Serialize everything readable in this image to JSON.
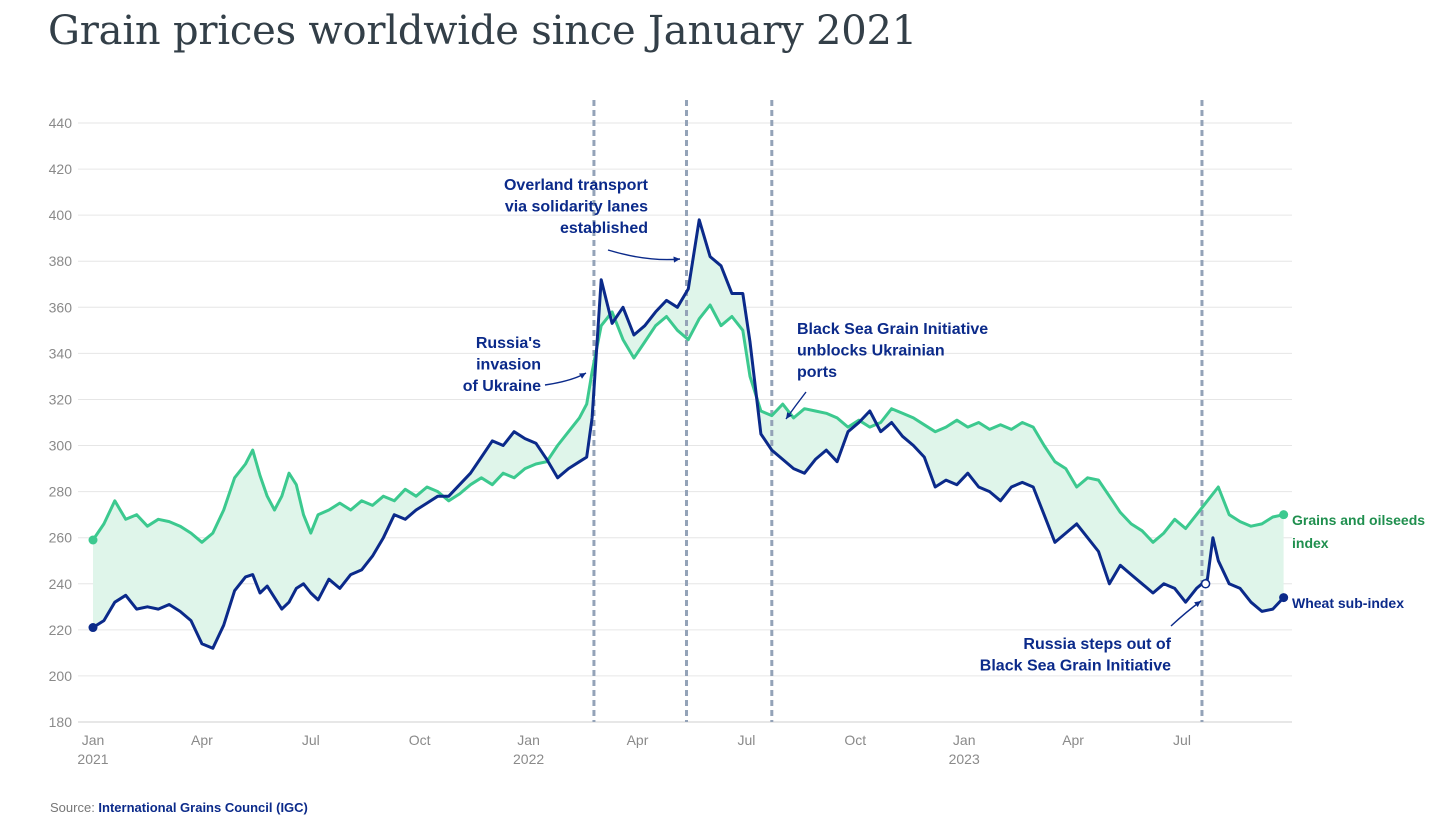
{
  "title": "Grain prices worldwide since January 2021",
  "source": {
    "prefix": "Source: ",
    "name": "International Grains Council (IGC)"
  },
  "colors": {
    "grains": "#3cc98f",
    "wheat": "#0b2a8a",
    "band": "#dff5ea",
    "grid": "#e6e6e6",
    "event": "#94a3b8"
  },
  "chart_data": {
    "type": "line",
    "title": "Grain prices worldwide since January 2021",
    "xlabel": "",
    "ylabel": "",
    "ylim": [
      180,
      440
    ],
    "xlim": [
      0,
      32
    ],
    "y_ticks": [
      180,
      200,
      220,
      240,
      260,
      280,
      300,
      320,
      340,
      360,
      380,
      400,
      420,
      440
    ],
    "x_ticks": [
      {
        "x": 0,
        "month": "Jan",
        "year": "2021"
      },
      {
        "x": 3,
        "month": "Apr",
        "year": ""
      },
      {
        "x": 6,
        "month": "Jul",
        "year": ""
      },
      {
        "x": 9,
        "month": "Oct",
        "year": ""
      },
      {
        "x": 12,
        "month": "Jan",
        "year": "2022"
      },
      {
        "x": 15,
        "month": "Apr",
        "year": ""
      },
      {
        "x": 18,
        "month": "Jul",
        "year": ""
      },
      {
        "x": 21,
        "month": "Oct",
        "year": ""
      },
      {
        "x": 24,
        "month": "Jan",
        "year": "2023"
      },
      {
        "x": 27,
        "month": "Apr",
        "year": ""
      },
      {
        "x": 30,
        "month": "Jul",
        "year": ""
      }
    ],
    "x_unit": "months since January 2021",
    "series": [
      {
        "name": "Grains and oilseeds index",
        "label_lines": [
          "Grains and oilseeds",
          "index"
        ],
        "points": [
          [
            0,
            259
          ],
          [
            0.3,
            266
          ],
          [
            0.6,
            276
          ],
          [
            0.9,
            268
          ],
          [
            1.2,
            270
          ],
          [
            1.5,
            265
          ],
          [
            1.8,
            268
          ],
          [
            2.1,
            267
          ],
          [
            2.4,
            265
          ],
          [
            2.7,
            262
          ],
          [
            3.0,
            258
          ],
          [
            3.3,
            262
          ],
          [
            3.6,
            272
          ],
          [
            3.9,
            286
          ],
          [
            4.2,
            292
          ],
          [
            4.4,
            298
          ],
          [
            4.6,
            287
          ],
          [
            4.8,
            278
          ],
          [
            5.0,
            272
          ],
          [
            5.2,
            278
          ],
          [
            5.4,
            288
          ],
          [
            5.6,
            283
          ],
          [
            5.8,
            270
          ],
          [
            6.0,
            262
          ],
          [
            6.2,
            270
          ],
          [
            6.5,
            272
          ],
          [
            6.8,
            275
          ],
          [
            7.1,
            272
          ],
          [
            7.4,
            276
          ],
          [
            7.7,
            274
          ],
          [
            8.0,
            278
          ],
          [
            8.3,
            276
          ],
          [
            8.6,
            281
          ],
          [
            8.9,
            278
          ],
          [
            9.2,
            282
          ],
          [
            9.5,
            280
          ],
          [
            9.8,
            276
          ],
          [
            10.1,
            279
          ],
          [
            10.4,
            283
          ],
          [
            10.7,
            286
          ],
          [
            11.0,
            283
          ],
          [
            11.3,
            288
          ],
          [
            11.6,
            286
          ],
          [
            11.9,
            290
          ],
          [
            12.2,
            292
          ],
          [
            12.5,
            293
          ],
          [
            12.8,
            300
          ],
          [
            13.1,
            306
          ],
          [
            13.4,
            312
          ],
          [
            13.6,
            318
          ],
          [
            13.75,
            332
          ],
          [
            14.0,
            352
          ],
          [
            14.3,
            358
          ],
          [
            14.6,
            346
          ],
          [
            14.9,
            338
          ],
          [
            15.2,
            345
          ],
          [
            15.5,
            352
          ],
          [
            15.8,
            356
          ],
          [
            16.1,
            350
          ],
          [
            16.4,
            346
          ],
          [
            16.7,
            355
          ],
          [
            17.0,
            361
          ],
          [
            17.3,
            352
          ],
          [
            17.6,
            356
          ],
          [
            17.9,
            350
          ],
          [
            18.1,
            330
          ],
          [
            18.4,
            315
          ],
          [
            18.7,
            313
          ],
          [
            19.0,
            318
          ],
          [
            19.3,
            312
          ],
          [
            19.6,
            316
          ],
          [
            19.9,
            315
          ],
          [
            20.2,
            314
          ],
          [
            20.5,
            312
          ],
          [
            20.8,
            308
          ],
          [
            21.1,
            311
          ],
          [
            21.4,
            308
          ],
          [
            21.7,
            310
          ],
          [
            22.0,
            316
          ],
          [
            22.3,
            314
          ],
          [
            22.6,
            312
          ],
          [
            22.9,
            309
          ],
          [
            23.2,
            306
          ],
          [
            23.5,
            308
          ],
          [
            23.8,
            311
          ],
          [
            24.1,
            308
          ],
          [
            24.4,
            310
          ],
          [
            24.7,
            307
          ],
          [
            25.0,
            309
          ],
          [
            25.3,
            307
          ],
          [
            25.6,
            310
          ],
          [
            25.9,
            308
          ],
          [
            26.2,
            300
          ],
          [
            26.5,
            293
          ],
          [
            26.8,
            290
          ],
          [
            27.1,
            282
          ],
          [
            27.4,
            286
          ],
          [
            27.7,
            285
          ],
          [
            28.0,
            278
          ],
          [
            28.3,
            271
          ],
          [
            28.6,
            266
          ],
          [
            28.9,
            263
          ],
          [
            29.2,
            258
          ],
          [
            29.5,
            262
          ],
          [
            29.8,
            268
          ],
          [
            30.1,
            264
          ],
          [
            30.4,
            270
          ],
          [
            30.7,
            276
          ],
          [
            31.0,
            282
          ],
          [
            31.3,
            270
          ],
          [
            31.6,
            267
          ],
          [
            31.9,
            265
          ],
          [
            32.2,
            266
          ],
          [
            32.5,
            269
          ],
          [
            32.8,
            270
          ]
        ]
      },
      {
        "name": "Wheat sub-index",
        "label_lines": [
          "Wheat sub-index"
        ],
        "points": [
          [
            0,
            221
          ],
          [
            0.3,
            224
          ],
          [
            0.6,
            232
          ],
          [
            0.9,
            235
          ],
          [
            1.2,
            229
          ],
          [
            1.5,
            230
          ],
          [
            1.8,
            229
          ],
          [
            2.1,
            231
          ],
          [
            2.4,
            228
          ],
          [
            2.7,
            224
          ],
          [
            3.0,
            214
          ],
          [
            3.3,
            212
          ],
          [
            3.6,
            222
          ],
          [
            3.9,
            237
          ],
          [
            4.2,
            243
          ],
          [
            4.4,
            244
          ],
          [
            4.6,
            236
          ],
          [
            4.8,
            239
          ],
          [
            5.0,
            234
          ],
          [
            5.2,
            229
          ],
          [
            5.4,
            232
          ],
          [
            5.6,
            238
          ],
          [
            5.8,
            240
          ],
          [
            6.0,
            236
          ],
          [
            6.2,
            233
          ],
          [
            6.5,
            242
          ],
          [
            6.8,
            238
          ],
          [
            7.1,
            244
          ],
          [
            7.4,
            246
          ],
          [
            7.7,
            252
          ],
          [
            8.0,
            260
          ],
          [
            8.3,
            270
          ],
          [
            8.6,
            268
          ],
          [
            8.9,
            272
          ],
          [
            9.2,
            275
          ],
          [
            9.5,
            278
          ],
          [
            9.8,
            278
          ],
          [
            10.1,
            283
          ],
          [
            10.4,
            288
          ],
          [
            10.7,
            295
          ],
          [
            11.0,
            302
          ],
          [
            11.3,
            300
          ],
          [
            11.6,
            306
          ],
          [
            11.9,
            303
          ],
          [
            12.2,
            301
          ],
          [
            12.5,
            294
          ],
          [
            12.8,
            286
          ],
          [
            13.1,
            290
          ],
          [
            13.4,
            293
          ],
          [
            13.6,
            295
          ],
          [
            13.75,
            312
          ],
          [
            14.0,
            372
          ],
          [
            14.3,
            353
          ],
          [
            14.6,
            360
          ],
          [
            14.9,
            348
          ],
          [
            15.2,
            352
          ],
          [
            15.5,
            358
          ],
          [
            15.8,
            363
          ],
          [
            16.1,
            360
          ],
          [
            16.4,
            368
          ],
          [
            16.7,
            398
          ],
          [
            17.0,
            382
          ],
          [
            17.3,
            378
          ],
          [
            17.6,
            366
          ],
          [
            17.9,
            366
          ],
          [
            18.1,
            345
          ],
          [
            18.4,
            305
          ],
          [
            18.7,
            298
          ],
          [
            19.0,
            294
          ],
          [
            19.3,
            290
          ],
          [
            19.6,
            288
          ],
          [
            19.9,
            294
          ],
          [
            20.2,
            298
          ],
          [
            20.5,
            293
          ],
          [
            20.8,
            306
          ],
          [
            21.1,
            310
          ],
          [
            21.4,
            315
          ],
          [
            21.7,
            306
          ],
          [
            22.0,
            310
          ],
          [
            22.3,
            304
          ],
          [
            22.6,
            300
          ],
          [
            22.9,
            295
          ],
          [
            23.2,
            282
          ],
          [
            23.5,
            285
          ],
          [
            23.8,
            283
          ],
          [
            24.1,
            288
          ],
          [
            24.4,
            282
          ],
          [
            24.7,
            280
          ],
          [
            25.0,
            276
          ],
          [
            25.3,
            282
          ],
          [
            25.6,
            284
          ],
          [
            25.9,
            282
          ],
          [
            26.2,
            270
          ],
          [
            26.5,
            258
          ],
          [
            26.8,
            262
          ],
          [
            27.1,
            266
          ],
          [
            27.4,
            260
          ],
          [
            27.7,
            254
          ],
          [
            28.0,
            240
          ],
          [
            28.3,
            248
          ],
          [
            28.6,
            244
          ],
          [
            28.9,
            240
          ],
          [
            29.2,
            236
          ],
          [
            29.5,
            240
          ],
          [
            29.8,
            238
          ],
          [
            30.1,
            232
          ],
          [
            30.4,
            238
          ],
          [
            30.7,
            242
          ],
          [
            30.85,
            260
          ],
          [
            31.0,
            250
          ],
          [
            31.3,
            240
          ],
          [
            31.6,
            238
          ],
          [
            31.9,
            232
          ],
          [
            32.2,
            228
          ],
          [
            32.5,
            229
          ],
          [
            32.8,
            234
          ]
        ]
      }
    ],
    "events": [
      {
        "x": 13.8,
        "label_lines": [
          "Russia's",
          "invasion",
          "of Ukraine"
        ]
      },
      {
        "x": 16.35,
        "label_lines": [
          "Overland transport",
          "via solidarity lanes",
          "established"
        ]
      },
      {
        "x": 18.7,
        "label_lines": [
          "Black Sea Grain Initiative",
          "unblocks Ukrainian",
          "ports"
        ]
      },
      {
        "x": 30.55,
        "label_lines": [
          "Russia steps out of",
          "Black Sea Grain Initiative"
        ]
      }
    ]
  }
}
